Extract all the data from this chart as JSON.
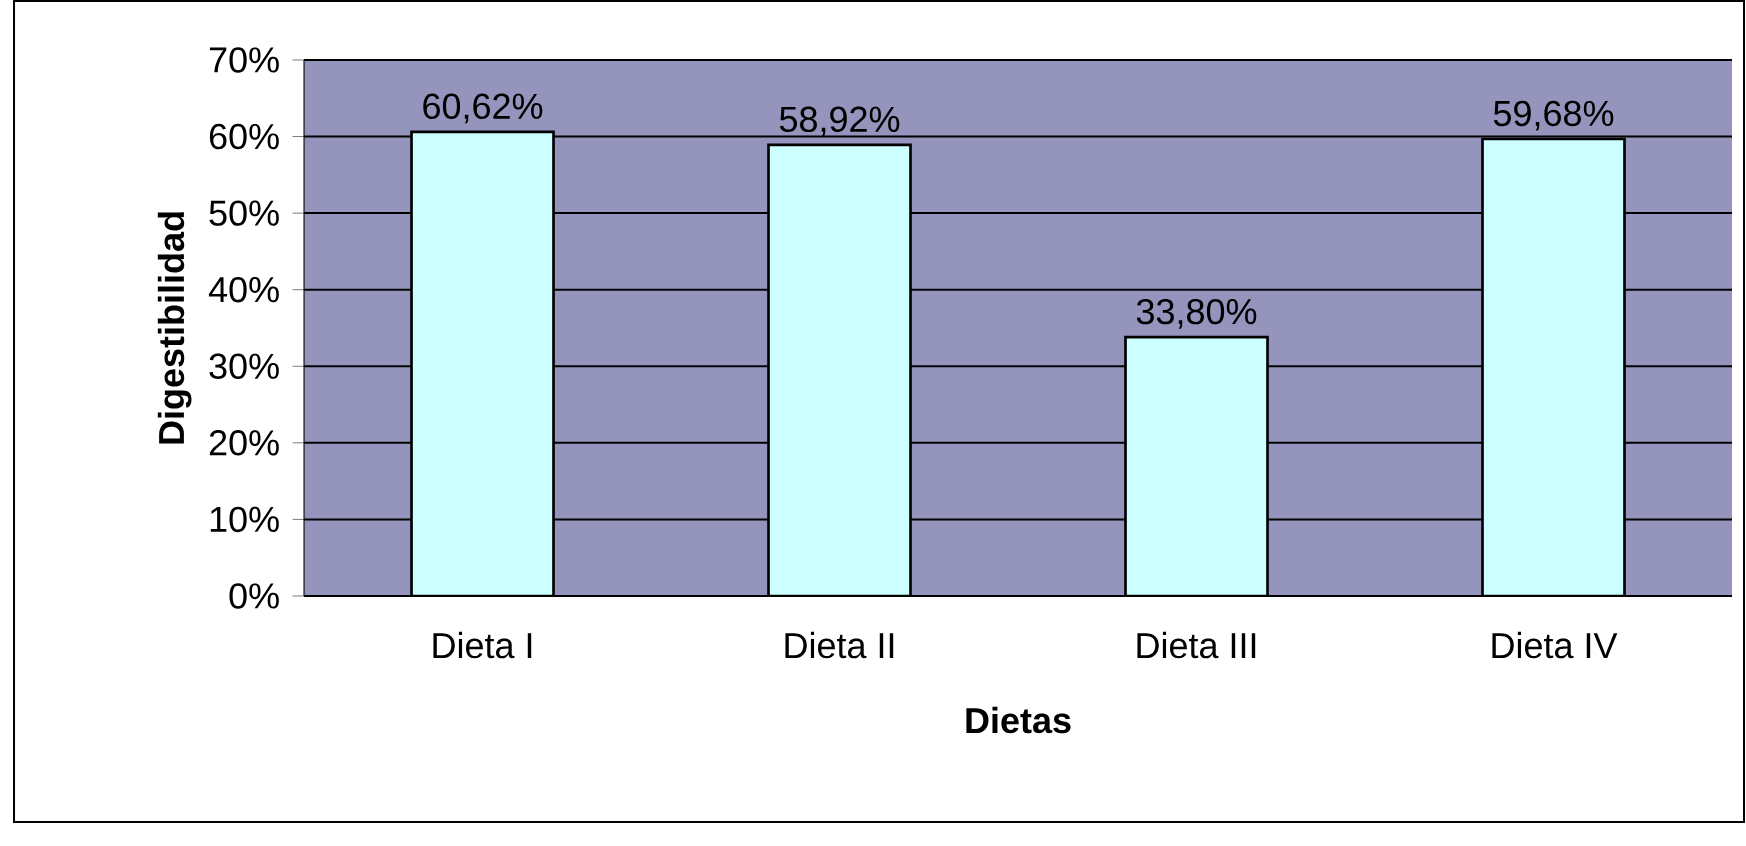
{
  "chart_data": {
    "type": "bar",
    "xlabel": "Dietas",
    "ylabel": "Digestibilidad",
    "categories": [
      "Dieta I",
      "Dieta II",
      "Dieta III",
      "Dieta IV"
    ],
    "values": [
      60.62,
      58.92,
      33.8,
      59.68
    ],
    "value_labels": [
      "60,62%",
      "58,92%",
      "33,80%",
      "59,68%"
    ],
    "color": "#ccffff",
    "ylim": [
      0,
      70
    ],
    "yticks": [
      {
        "value": 0,
        "label": "0%"
      },
      {
        "value": 10,
        "label": "10%"
      },
      {
        "value": 20,
        "label": "20%"
      },
      {
        "value": 30,
        "label": "30%"
      },
      {
        "value": 40,
        "label": "40%"
      },
      {
        "value": 50,
        "label": "50%"
      },
      {
        "value": 60,
        "label": "60%"
      },
      {
        "value": 70,
        "label": "70%"
      }
    ],
    "grid": "y"
  }
}
